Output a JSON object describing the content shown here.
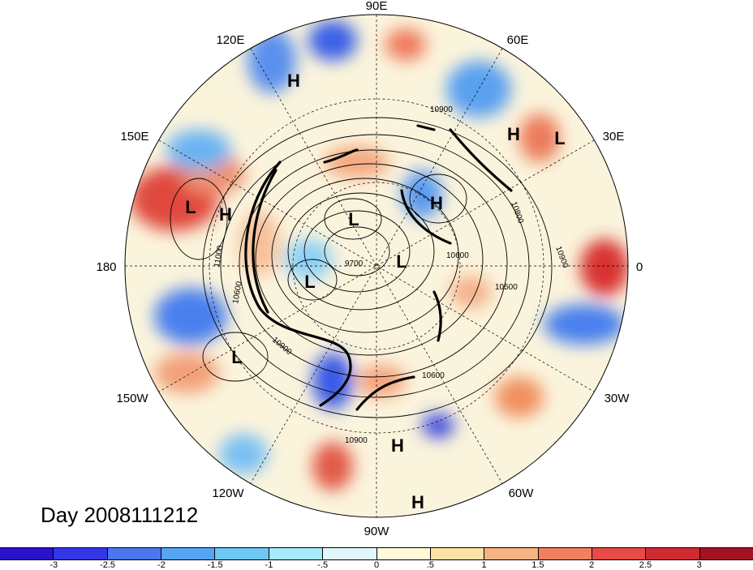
{
  "title": "Day 2008111212",
  "longitude_labels": [
    {
      "text": "90E"
    },
    {
      "text": "60E"
    },
    {
      "text": "30E"
    },
    {
      "text": "0"
    },
    {
      "text": "30W"
    },
    {
      "text": "60W"
    },
    {
      "text": "90W"
    },
    {
      "text": "120W"
    },
    {
      "text": "150W"
    },
    {
      "text": "180"
    },
    {
      "text": "150E"
    },
    {
      "text": "120E"
    }
  ],
  "pressure_centers": [
    {
      "type": "H"
    },
    {
      "type": "H"
    },
    {
      "type": "L"
    },
    {
      "type": "L"
    },
    {
      "type": "H"
    },
    {
      "type": "H"
    },
    {
      "type": "L"
    },
    {
      "type": "L"
    },
    {
      "type": "L"
    },
    {
      "type": "L"
    },
    {
      "type": "H"
    },
    {
      "type": "H"
    }
  ],
  "contour_labels": [
    "10900",
    "10800",
    "10900",
    "10600",
    "10500",
    "10600",
    "9700",
    "10600",
    "10900",
    "11000",
    "10900"
  ],
  "colorbar": {
    "colors": [
      "#2a12c9",
      "#3535e8",
      "#4a76f0",
      "#55a5f4",
      "#6fc7f6",
      "#a6e9f7",
      "#e2f7fb",
      "#fffad8",
      "#fce2a6",
      "#f6b382",
      "#f0805f",
      "#e84b46",
      "#cf2a34",
      "#a31222"
    ],
    "tick_labels": [
      "-3",
      "-2.5",
      "-2",
      "-1.5",
      "-1",
      "-.5",
      "0",
      ".5",
      "1",
      "1.5",
      "2",
      "2.5",
      "3"
    ]
  }
}
